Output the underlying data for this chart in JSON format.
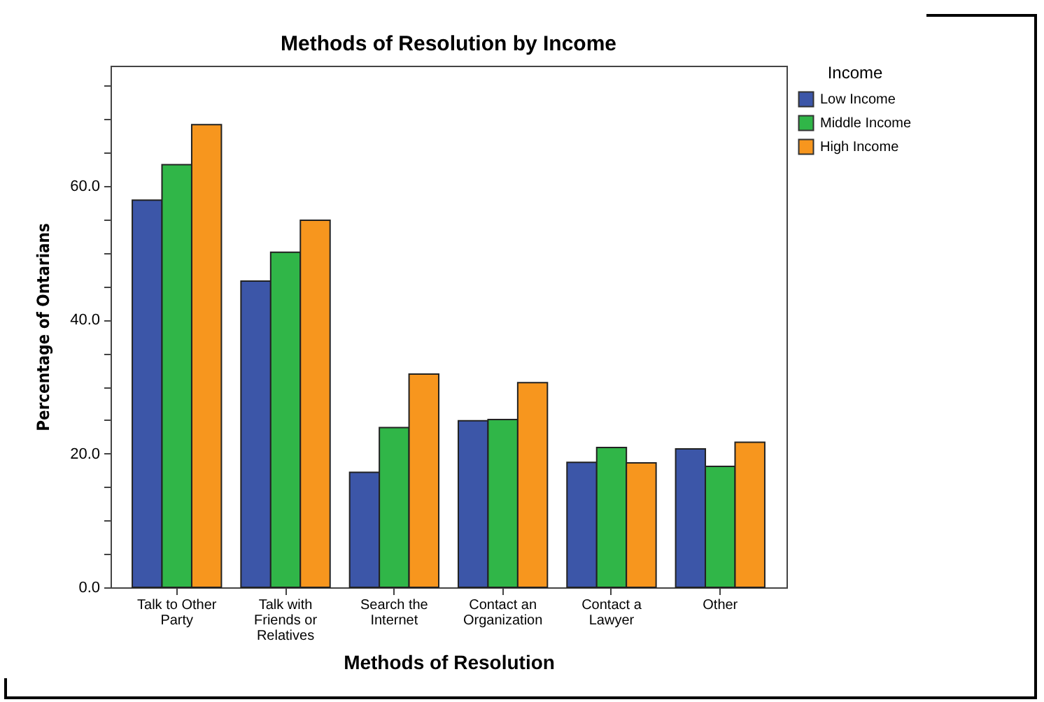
{
  "chart_data": {
    "type": "bar",
    "title": "Methods of Resolution by Income",
    "xlabel": "Methods of Resolution",
    "ylabel": "Percentage of Ontarians",
    "legend_title": "Income",
    "categories": [
      "Talk to Other Party",
      "Talk with Friends or Relatives",
      "Search the Internet",
      "Contact an Organization",
      "Contact a Lawyer",
      "Other"
    ],
    "series": [
      {
        "name": "Low Income",
        "color": "#3c56a8",
        "values": [
          57.9,
          45.8,
          17.2,
          24.9,
          18.7,
          20.7
        ]
      },
      {
        "name": "Middle Income",
        "color": "#30b648",
        "values": [
          63.2,
          50.1,
          23.9,
          25.1,
          20.9,
          18.1
        ]
      },
      {
        "name": "High Income",
        "color": "#f7961e",
        "values": [
          69.2,
          54.9,
          31.9,
          30.6,
          18.6,
          21.7
        ]
      }
    ],
    "ylim": [
      0,
      78
    ],
    "yticks": [
      {
        "value": 0,
        "label": "0.0"
      },
      {
        "value": 5,
        "label": null
      },
      {
        "value": 10,
        "label": null
      },
      {
        "value": 15,
        "label": null
      },
      {
        "value": 20,
        "label": "20.0"
      },
      {
        "value": 25,
        "label": null
      },
      {
        "value": 30,
        "label": null
      },
      {
        "value": 35,
        "label": null
      },
      {
        "value": 40,
        "label": "40.0"
      },
      {
        "value": 45,
        "label": null
      },
      {
        "value": 50,
        "label": null
      },
      {
        "value": 55,
        "label": null
      },
      {
        "value": 60,
        "label": "60.0"
      },
      {
        "value": 65,
        "label": null
      },
      {
        "value": 70,
        "label": null
      },
      {
        "value": 75,
        "label": null
      }
    ],
    "grid": false,
    "legend": "top right"
  }
}
